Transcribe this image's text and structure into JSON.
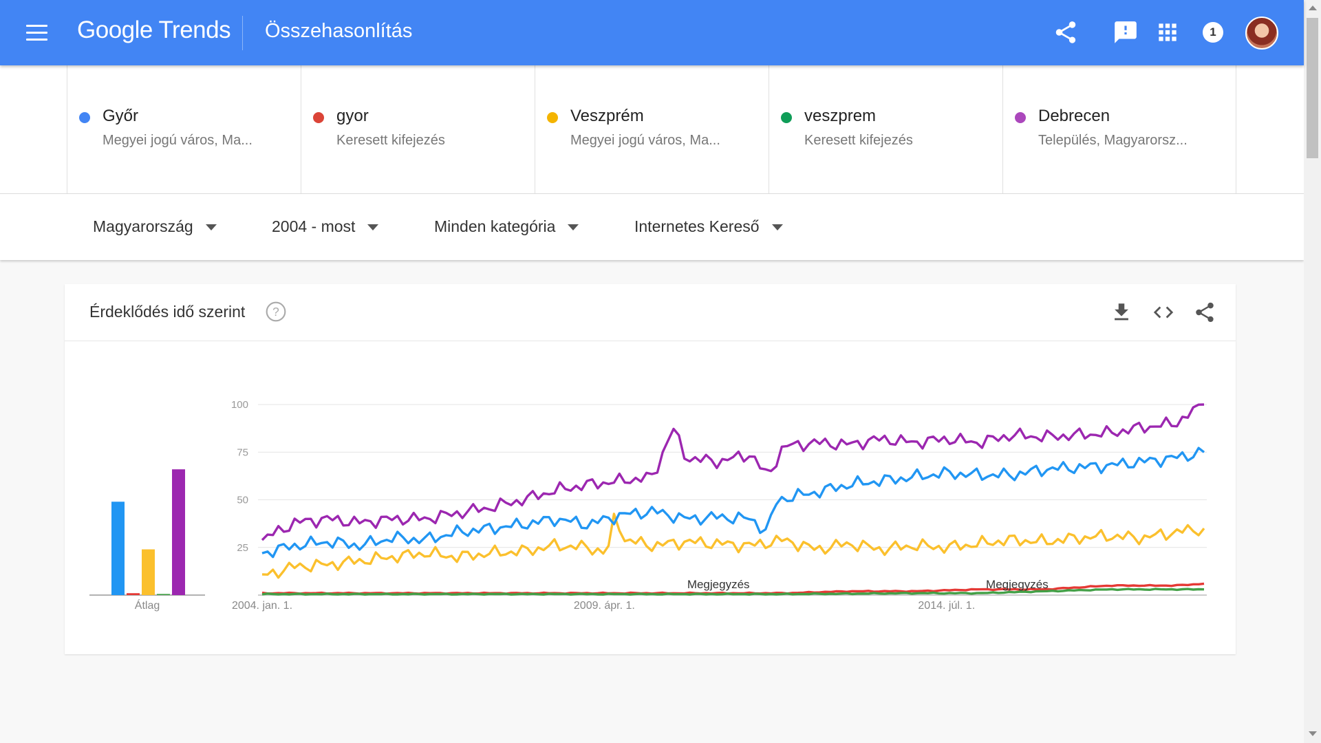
{
  "header": {
    "logo_text": "Google Trends",
    "page_title": "Összehasonlítás",
    "notification_count": "1"
  },
  "terms": [
    {
      "name": "Győr",
      "subtitle": "Megyei jogú város, Ma...",
      "color": "#4285f4"
    },
    {
      "name": "gyor",
      "subtitle": "Keresett kifejezés",
      "color": "#db4437"
    },
    {
      "name": "Veszprém",
      "subtitle": "Megyei jogú város, Ma...",
      "color": "#f4b400"
    },
    {
      "name": "veszprem",
      "subtitle": "Keresett kifejezés",
      "color": "#0f9d58"
    },
    {
      "name": "Debrecen",
      "subtitle": "Település, Magyarorsz...",
      "color": "#ab47bc"
    }
  ],
  "filters": {
    "region": "Magyarország",
    "time_range": "2004 - most",
    "category": "Minden kategória",
    "search_type": "Internetes Kereső"
  },
  "card": {
    "title": "Érdeklődés idő szerint"
  },
  "chart_data": {
    "type": "line",
    "y_ticks": [
      "100",
      "75",
      "50",
      "25"
    ],
    "ylim": [
      0,
      100
    ],
    "x_tick_labels": [
      "2004. jan. 1.",
      "2009. ápr. 1.",
      "2014. júl. 1."
    ],
    "x_range": [
      "2004-01",
      "2018-06"
    ],
    "grid": true,
    "annotations": [
      {
        "text": "Megjegyzés",
        "date": "2011-01"
      },
      {
        "text": "Megjegyzés",
        "date": "2015-08"
      }
    ],
    "average_label": "Átlag",
    "averages": [
      {
        "color": "#2196f3",
        "value": 49
      },
      {
        "color": "#e53935",
        "value": 1
      },
      {
        "color": "#fbc02d",
        "value": 24
      },
      {
        "color": "#43a047",
        "value": 0.5
      },
      {
        "color": "#9c27b0",
        "value": 66
      }
    ],
    "series": [
      {
        "color": "#2196f3",
        "key": [
          [
            2004.0,
            22
          ],
          [
            2004.5,
            26
          ],
          [
            2005.0,
            28
          ],
          [
            2005.5,
            26
          ],
          [
            2006.0,
            30
          ],
          [
            2006.5,
            29
          ],
          [
            2007.0,
            33
          ],
          [
            2007.5,
            35
          ],
          [
            2008.0,
            37
          ],
          [
            2008.5,
            40
          ],
          [
            2009.0,
            37
          ],
          [
            2009.5,
            42
          ],
          [
            2010.0,
            44
          ],
          [
            2010.5,
            40
          ],
          [
            2011.0,
            41
          ],
          [
            2011.5,
            40
          ],
          [
            2011.75,
            33
          ],
          [
            2011.9,
            50
          ],
          [
            2012.5,
            54
          ],
          [
            2013.0,
            58
          ],
          [
            2013.5,
            60
          ],
          [
            2014.0,
            62
          ],
          [
            2014.5,
            64
          ],
          [
            2015.0,
            63
          ],
          [
            2015.5,
            63
          ],
          [
            2016.0,
            66
          ],
          [
            2016.5,
            67
          ],
          [
            2017.0,
            68
          ],
          [
            2017.5,
            70
          ],
          [
            2018.0,
            72
          ],
          [
            2018.45,
            75
          ]
        ]
      },
      {
        "color": "#e53935",
        "key": [
          [
            2004.0,
            1
          ],
          [
            2010.0,
            1
          ],
          [
            2012.0,
            1
          ],
          [
            2013.0,
            2
          ],
          [
            2014.0,
            2
          ],
          [
            2015.0,
            3
          ],
          [
            2016.0,
            3
          ],
          [
            2017.0,
            5
          ],
          [
            2018.0,
            5
          ],
          [
            2018.45,
            6
          ]
        ]
      },
      {
        "color": "#fbc02d",
        "key": [
          [
            2004.0,
            10
          ],
          [
            2004.5,
            15
          ],
          [
            2005.0,
            16
          ],
          [
            2005.5,
            18
          ],
          [
            2006.0,
            20
          ],
          [
            2006.5,
            22
          ],
          [
            2007.0,
            20
          ],
          [
            2007.5,
            22
          ],
          [
            2008.0,
            23
          ],
          [
            2008.5,
            26
          ],
          [
            2009.0,
            25
          ],
          [
            2009.3,
            22
          ],
          [
            2009.42,
            44
          ],
          [
            2009.55,
            29
          ],
          [
            2010.0,
            26
          ],
          [
            2010.5,
            28
          ],
          [
            2011.0,
            27
          ],
          [
            2011.5,
            26
          ],
          [
            2012.0,
            29
          ],
          [
            2012.5,
            24
          ],
          [
            2013.0,
            27
          ],
          [
            2013.5,
            24
          ],
          [
            2014.0,
            26
          ],
          [
            2014.5,
            25
          ],
          [
            2015.0,
            27
          ],
          [
            2015.5,
            29
          ],
          [
            2016.0,
            28
          ],
          [
            2016.5,
            30
          ],
          [
            2017.0,
            31
          ],
          [
            2017.5,
            30
          ],
          [
            2018.0,
            33
          ],
          [
            2018.45,
            35
          ]
        ]
      },
      {
        "color": "#43a047",
        "key": [
          [
            2004.0,
            0.5
          ],
          [
            2010.0,
            0.5
          ],
          [
            2012.0,
            0.5
          ],
          [
            2014.0,
            1
          ],
          [
            2015.0,
            1
          ],
          [
            2016.0,
            2
          ],
          [
            2017.0,
            3
          ],
          [
            2018.0,
            3
          ],
          [
            2018.45,
            3
          ]
        ]
      },
      {
        "color": "#9c27b0",
        "key": [
          [
            2004.0,
            29
          ],
          [
            2004.5,
            38
          ],
          [
            2005.0,
            40
          ],
          [
            2005.5,
            38
          ],
          [
            2006.0,
            40
          ],
          [
            2006.5,
            40
          ],
          [
            2007.0,
            43
          ],
          [
            2007.5,
            46
          ],
          [
            2008.0,
            50
          ],
          [
            2008.5,
            55
          ],
          [
            2009.0,
            58
          ],
          [
            2009.5,
            60
          ],
          [
            2010.0,
            62
          ],
          [
            2010.3,
            88
          ],
          [
            2010.5,
            72
          ],
          [
            2011.0,
            70
          ],
          [
            2011.5,
            74
          ],
          [
            2011.75,
            62
          ],
          [
            2012.0,
            78
          ],
          [
            2012.5,
            80
          ],
          [
            2013.0,
            79
          ],
          [
            2013.5,
            82
          ],
          [
            2014.0,
            80
          ],
          [
            2014.5,
            82
          ],
          [
            2015.0,
            80
          ],
          [
            2015.5,
            84
          ],
          [
            2016.0,
            83
          ],
          [
            2016.5,
            84
          ],
          [
            2017.0,
            85
          ],
          [
            2017.5,
            88
          ],
          [
            2018.0,
            90
          ],
          [
            2018.45,
            100
          ]
        ]
      }
    ]
  }
}
